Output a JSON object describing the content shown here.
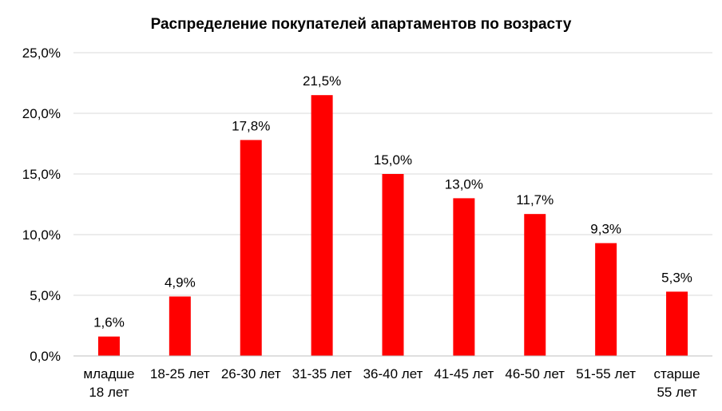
{
  "chart_data": {
    "type": "bar",
    "title": "Распределение покупателей апартаментов по возрасту",
    "xlabel": "",
    "ylabel": "",
    "categories": [
      [
        "младше",
        "18 лет"
      ],
      [
        "18-25 лет"
      ],
      [
        "26-30 лет"
      ],
      [
        "31-35 лет"
      ],
      [
        "36-40 лет"
      ],
      [
        "41-45 лет"
      ],
      [
        "46-50 лет"
      ],
      [
        "51-55 лет"
      ],
      [
        "старше",
        "55 лет"
      ]
    ],
    "values": [
      1.6,
      4.9,
      17.8,
      21.5,
      15.0,
      13.0,
      11.7,
      9.3,
      5.3
    ],
    "data_labels": [
      "1,6%",
      "4,9%",
      "17,8%",
      "21,5%",
      "15,0%",
      "13,0%",
      "11,7%",
      "9,3%",
      "5,3%"
    ],
    "ylim": [
      0,
      25
    ],
    "y_ticks": [
      0,
      5,
      10,
      15,
      20,
      25
    ],
    "y_tick_labels": [
      "0,0%",
      "5,0%",
      "10,0%",
      "15,0%",
      "20,0%",
      "25,0%"
    ],
    "grid": true,
    "legend": "none",
    "bar_color": "#ff0000"
  }
}
